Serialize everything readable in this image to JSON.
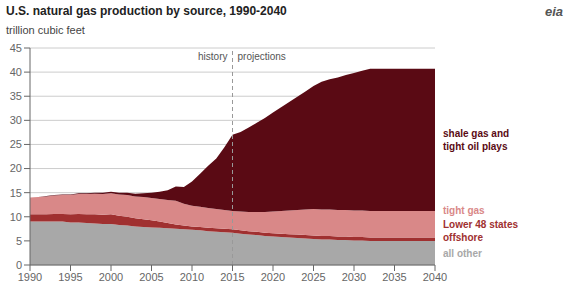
{
  "chart_data": {
    "type": "area",
    "stacked": true,
    "title": "U.S. natural gas production by source, 1990-2040",
    "ylabel": "trillion cubic feet",
    "x": [
      1990,
      1991,
      1992,
      1993,
      1994,
      1995,
      1996,
      1997,
      1998,
      1999,
      2000,
      2001,
      2002,
      2003,
      2004,
      2005,
      2006,
      2007,
      2008,
      2009,
      2010,
      2011,
      2012,
      2013,
      2014,
      2015,
      2016,
      2017,
      2018,
      2019,
      2020,
      2021,
      2022,
      2023,
      2024,
      2025,
      2026,
      2027,
      2028,
      2029,
      2030,
      2031,
      2032,
      2033,
      2034,
      2035,
      2036,
      2037,
      2038,
      2039,
      2040
    ],
    "series": [
      {
        "name": "all other",
        "color": "#a8a8a8",
        "values": [
          9.0,
          9.0,
          9.0,
          9.0,
          9.0,
          8.8,
          8.8,
          8.7,
          8.6,
          8.5,
          8.5,
          8.3,
          8.2,
          8.0,
          7.9,
          7.8,
          7.7,
          7.6,
          7.5,
          7.4,
          7.3,
          7.2,
          7.0,
          6.9,
          6.8,
          6.7,
          6.5,
          6.3,
          6.2,
          6.0,
          5.9,
          5.8,
          5.7,
          5.6,
          5.5,
          5.4,
          5.3,
          5.3,
          5.2,
          5.2,
          5.1,
          5.1,
          5.0,
          5.0,
          5.0,
          5.0,
          5.0,
          5.0,
          5.0,
          5.0,
          5.0
        ]
      },
      {
        "name": "Lower 48 states\noffshore",
        "color": "#a03030",
        "values": [
          1.5,
          1.5,
          1.5,
          1.6,
          1.6,
          1.7,
          1.8,
          1.8,
          1.9,
          1.9,
          2.0,
          1.9,
          1.8,
          1.7,
          1.6,
          1.5,
          1.3,
          1.1,
          0.9,
          0.8,
          0.7,
          0.7,
          0.7,
          0.7,
          0.7,
          0.7,
          0.7,
          0.7,
          0.7,
          0.7,
          0.7,
          0.7,
          0.7,
          0.7,
          0.7,
          0.7,
          0.7,
          0.7,
          0.7,
          0.7,
          0.7,
          0.7,
          0.7,
          0.7,
          0.7,
          0.7,
          0.7,
          0.7,
          0.7,
          0.7,
          0.7
        ]
      },
      {
        "name": "tight gas",
        "color": "#d98888",
        "values": [
          3.5,
          3.6,
          3.7,
          3.8,
          3.9,
          4.0,
          4.1,
          4.2,
          4.3,
          4.3,
          4.4,
          4.4,
          4.5,
          4.5,
          4.6,
          4.6,
          4.7,
          4.8,
          4.9,
          4.5,
          4.3,
          4.2,
          4.1,
          4.0,
          3.9,
          3.8,
          3.9,
          4.0,
          4.1,
          4.3,
          4.5,
          4.7,
          4.9,
          5.1,
          5.3,
          5.5,
          5.5,
          5.5,
          5.5,
          5.5,
          5.5,
          5.5,
          5.5,
          5.5,
          5.5,
          5.5,
          5.5,
          5.5,
          5.5,
          5.5,
          5.5
        ]
      },
      {
        "name": "shale gas and\ntight oil plays",
        "color": "#5a0a14",
        "values": [
          0.0,
          0.0,
          0.1,
          0.1,
          0.1,
          0.1,
          0.2,
          0.2,
          0.2,
          0.3,
          0.3,
          0.4,
          0.5,
          0.6,
          0.8,
          1.1,
          1.5,
          2.0,
          3.0,
          3.5,
          5.0,
          6.8,
          8.8,
          10.5,
          13.0,
          15.8,
          16.5,
          17.5,
          18.5,
          19.5,
          20.5,
          21.5,
          22.5,
          23.5,
          24.5,
          25.5,
          26.5,
          27.0,
          27.5,
          28.0,
          28.5,
          29.0,
          29.5,
          29.5,
          29.5,
          29.5,
          29.5,
          29.5,
          29.5,
          29.5,
          29.5
        ]
      }
    ],
    "xlim": [
      1990,
      2040
    ],
    "xticks": [
      1990,
      1995,
      2000,
      2005,
      2010,
      2015,
      2020,
      2025,
      2030,
      2035,
      2040
    ],
    "ylim": [
      0,
      45
    ],
    "yticks": [
      0,
      5,
      10,
      15,
      20,
      25,
      30,
      35,
      40,
      45
    ],
    "grid": true,
    "annotations": [
      {
        "type": "vline",
        "x": 2015,
        "text_left": "history",
        "text_right": "projections"
      },
      {
        "text": "eia"
      }
    ]
  }
}
